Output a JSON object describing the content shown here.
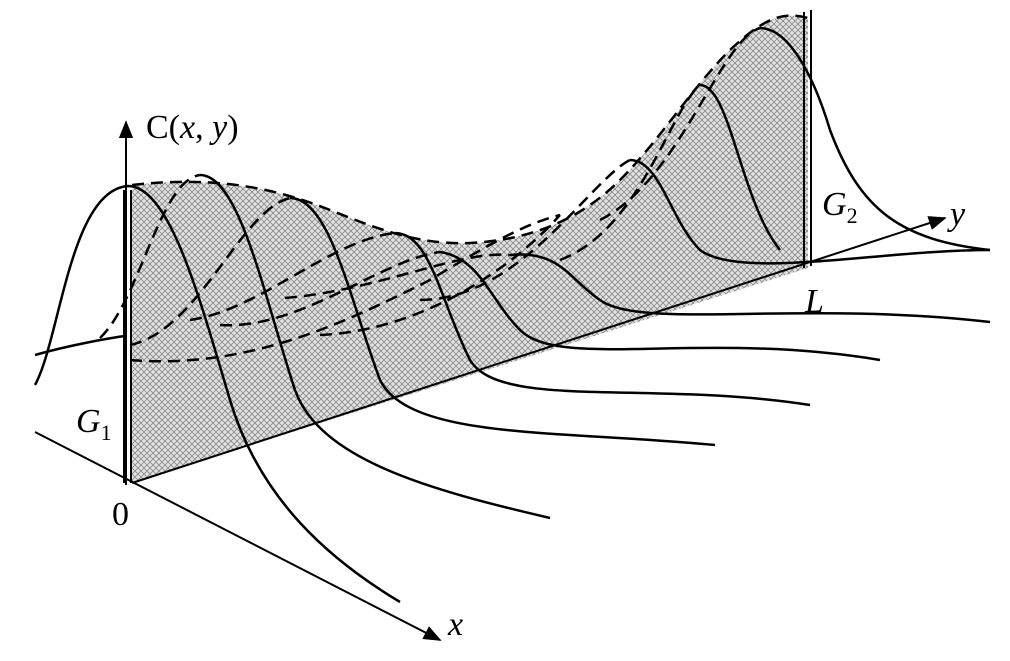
{
  "labels": {
    "concentration": {
      "prefix": "C(",
      "var1": "x",
      "sep": ", ",
      "var2": "y",
      "suffix": ")"
    },
    "y_axis": "y",
    "x_axis": "x",
    "origin": "0",
    "length": "L",
    "g1": {
      "letter": "G",
      "sub": "1"
    },
    "g2": {
      "letter": "G",
      "sub": "2"
    }
  }
}
